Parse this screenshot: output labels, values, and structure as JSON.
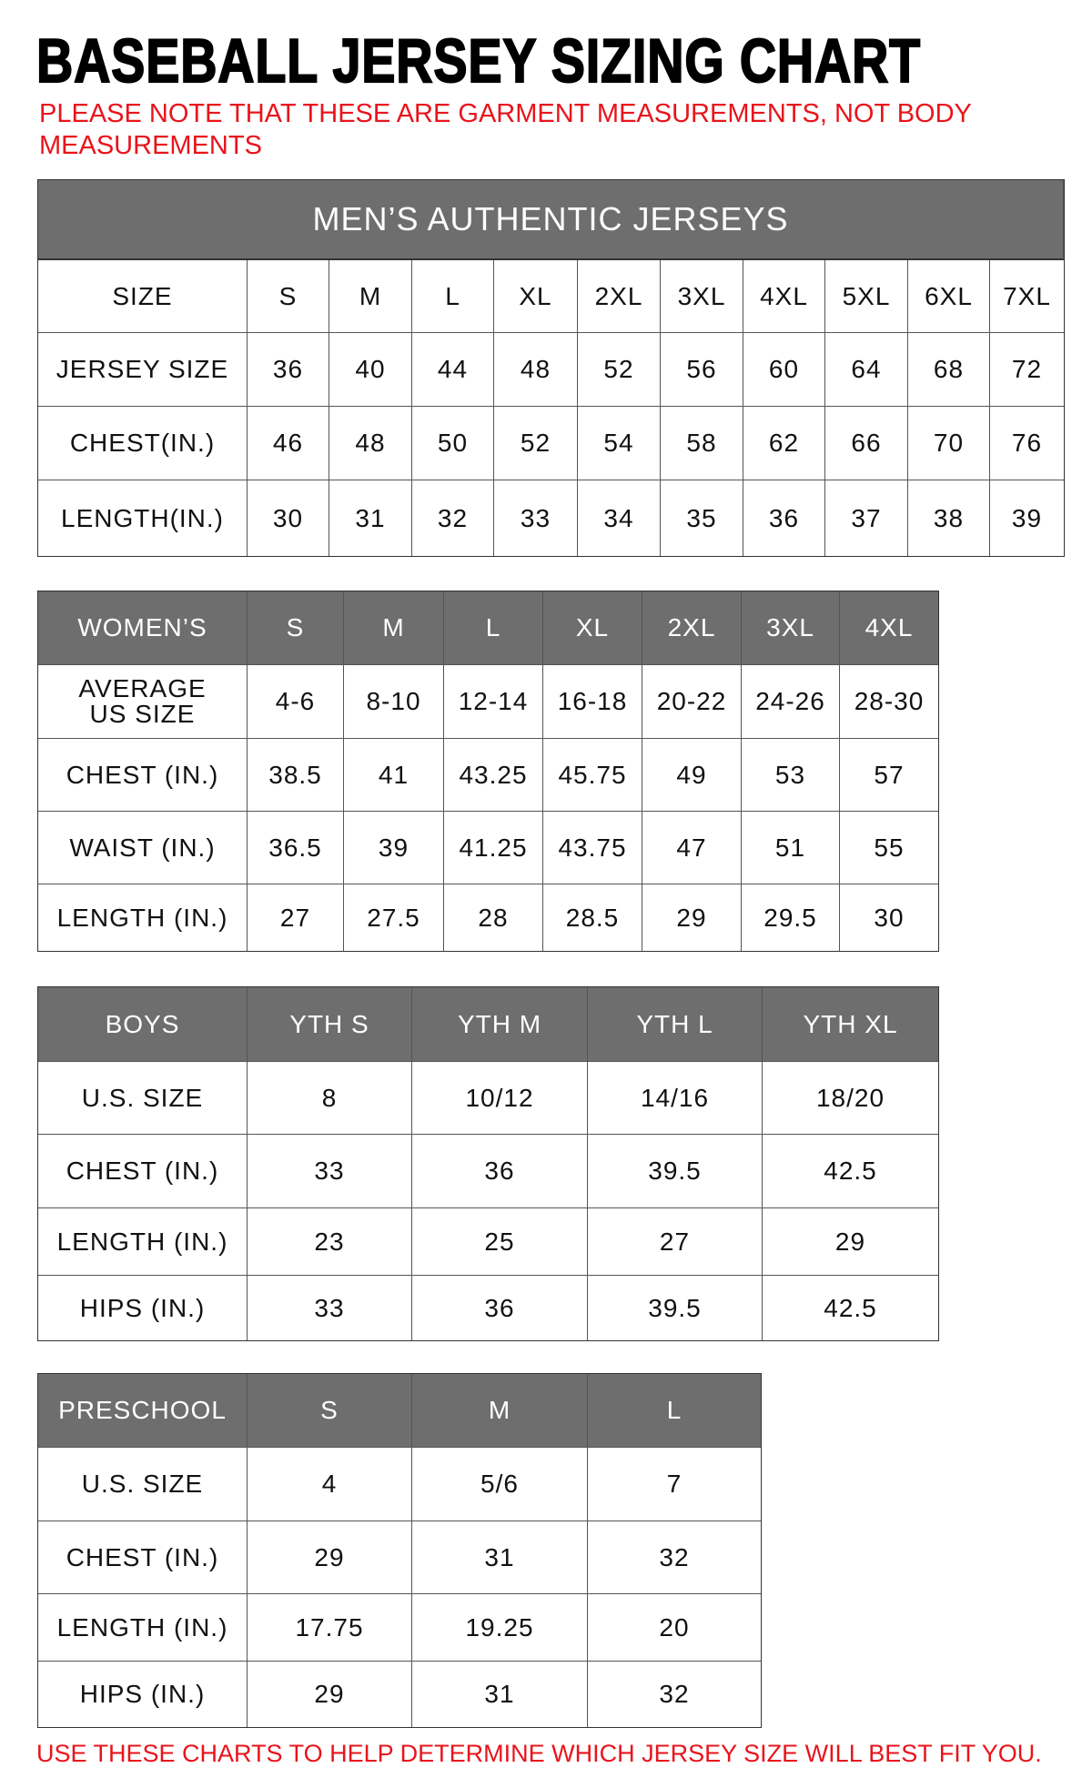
{
  "title": "BASEBALL JERSEY SIZING CHART",
  "note": "PLEASE NOTE THAT THESE ARE GARMENT MEASUREMENTS, NOT BODY MEASUREMENTS",
  "footer": "USE THESE CHARTS TO HELP DETERMINE WHICH JERSEY SIZE WILL BEST FIT YOU.",
  "colors": {
    "header_bg": "#6e6e6e",
    "note_red": "#e8141c"
  },
  "tables": {
    "men": {
      "banner": "MEN’S AUTHENTIC JERSEYS",
      "header": [
        "SIZE",
        "S",
        "M",
        "L",
        "XL",
        "2XL",
        "3XL",
        "4XL",
        "5XL",
        "6XL",
        "7XL"
      ],
      "rows": [
        [
          "JERSEY SIZE",
          "36",
          "40",
          "44",
          "48",
          "52",
          "56",
          "60",
          "64",
          "68",
          "72"
        ],
        [
          "CHEST(IN.)",
          "46",
          "48",
          "50",
          "52",
          "54",
          "58",
          "62",
          "66",
          "70",
          "76"
        ],
        [
          "LENGTH(IN.)",
          "30",
          "31",
          "32",
          "33",
          "34",
          "35",
          "36",
          "37",
          "38",
          "39"
        ]
      ]
    },
    "women": {
      "header": [
        "WOMEN’S",
        "S",
        "M",
        "L",
        "XL",
        "2XL",
        "3XL",
        "4XL"
      ],
      "rows": [
        [
          "AVERAGE US SIZE",
          "4-6",
          "8-10",
          "12-14",
          "16-18",
          "20-22",
          "24-26",
          "28-30"
        ],
        [
          "CHEST (IN.)",
          "38.5",
          "41",
          "43.25",
          "45.75",
          "49",
          "53",
          "57"
        ],
        [
          "WAIST (IN.)",
          "36.5",
          "39",
          "41.25",
          "43.75",
          "47",
          "51",
          "55"
        ],
        [
          "LENGTH (IN.)",
          "27",
          "27.5",
          "28",
          "28.5",
          "29",
          "29.5",
          "30"
        ]
      ]
    },
    "boys": {
      "header": [
        "BOYS",
        "YTH S",
        "YTH M",
        "YTH L",
        "YTH XL"
      ],
      "rows": [
        [
          "U.S. SIZE",
          "8",
          "10/12",
          "14/16",
          "18/20"
        ],
        [
          "CHEST (IN.)",
          "33",
          "36",
          "39.5",
          "42.5"
        ],
        [
          "LENGTH (IN.)",
          "23",
          "25",
          "27",
          "29"
        ],
        [
          "HIPS (IN.)",
          "33",
          "36",
          "39.5",
          "42.5"
        ]
      ]
    },
    "pre": {
      "header": [
        "PRESCHOOL",
        "S",
        "M",
        "L"
      ],
      "rows": [
        [
          "U.S. SIZE",
          "4",
          "5/6",
          "7"
        ],
        [
          "CHEST (IN.)",
          "29",
          "31",
          "32"
        ],
        [
          "LENGTH (IN.)",
          "17.75",
          "19.25",
          "20"
        ],
        [
          "HIPS (IN.)",
          "29",
          "31",
          "32"
        ]
      ]
    }
  }
}
